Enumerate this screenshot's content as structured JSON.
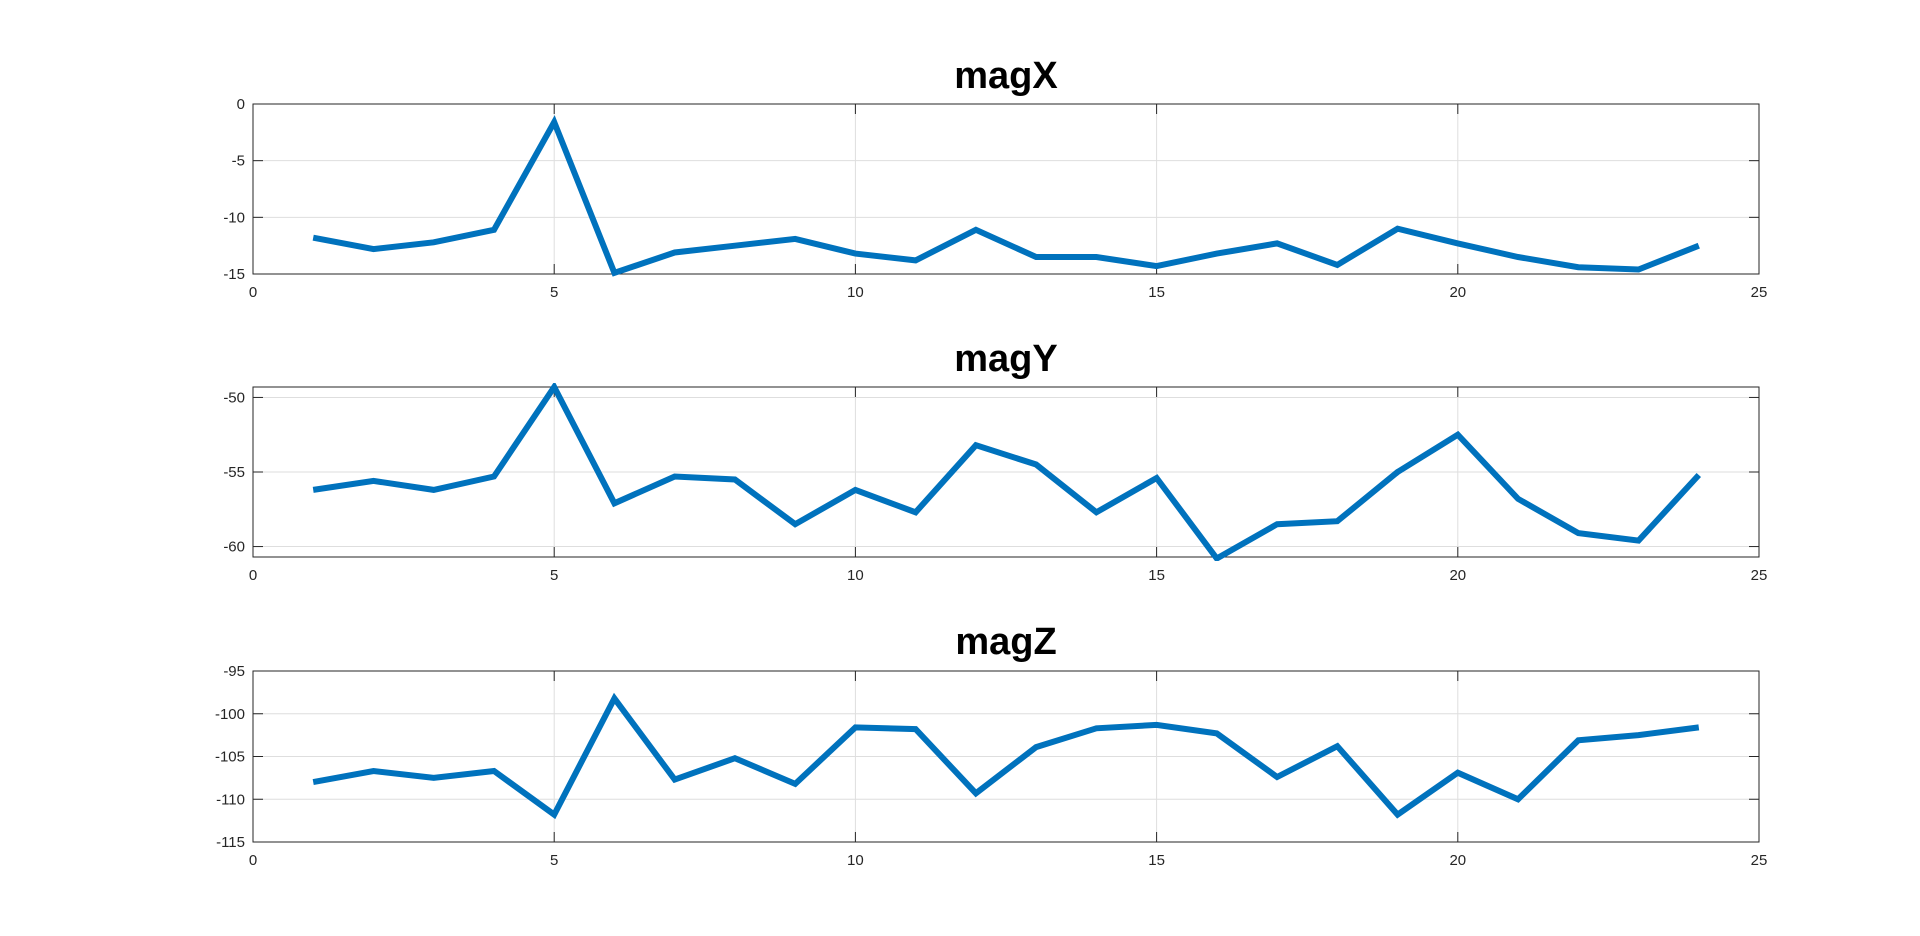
{
  "chart_data": [
    {
      "type": "line",
      "title": "magX",
      "xlabel": "",
      "ylabel": "",
      "xlim": [
        0,
        25
      ],
      "ylim": [
        -15,
        0
      ],
      "xticks": [
        "0",
        "5",
        "10",
        "15",
        "20",
        "25"
      ],
      "xtick_values": [
        0,
        5,
        10,
        15,
        20,
        25
      ],
      "yticks": [
        "0",
        "-5",
        "-10",
        "-15"
      ],
      "ytick_values": [
        0,
        -5,
        -10,
        -15
      ],
      "grid": true,
      "x": [
        1,
        2,
        3,
        4,
        5,
        6,
        7,
        8,
        9,
        10,
        11,
        12,
        13,
        14,
        15,
        16,
        17,
        18,
        19,
        20,
        21,
        22,
        23,
        24
      ],
      "series": [
        {
          "color": "#0072BD",
          "values": [
            -11.8,
            -12.8,
            -12.2,
            -11.1,
            -1.6,
            -14.9,
            -13.1,
            -12.5,
            -11.9,
            -13.2,
            -13.8,
            -11.1,
            -13.5,
            -13.5,
            -14.3,
            -13.2,
            -12.3,
            -14.2,
            -11.0,
            -12.3,
            -13.5,
            -14.4,
            -14.6,
            -12.5
          ]
        }
      ]
    },
    {
      "type": "line",
      "title": "magY",
      "xlabel": "",
      "ylabel": "",
      "xlim": [
        0,
        25
      ],
      "ylim": [
        -60.7,
        -49.3
      ],
      "xticks": [
        "0",
        "5",
        "10",
        "15",
        "20",
        "25"
      ],
      "xtick_values": [
        0,
        5,
        10,
        15,
        20,
        25
      ],
      "yticks": [
        "-50",
        "-55",
        "-60"
      ],
      "ytick_values": [
        -50,
        -55,
        -60
      ],
      "grid": true,
      "x": [
        1,
        2,
        3,
        4,
        5,
        6,
        7,
        8,
        9,
        10,
        11,
        12,
        13,
        14,
        15,
        16,
        17,
        18,
        19,
        20,
        21,
        22,
        23,
        24
      ],
      "series": [
        {
          "color": "#0072BD",
          "values": [
            -56.2,
            -55.6,
            -56.2,
            -55.3,
            -49.3,
            -57.1,
            -55.3,
            -55.5,
            -58.5,
            -56.2,
            -57.7,
            -53.2,
            -54.5,
            -57.7,
            -55.4,
            -60.8,
            -58.5,
            -58.3,
            -55.0,
            -52.5,
            -56.8,
            -59.1,
            -59.6,
            -55.2
          ]
        }
      ]
    },
    {
      "type": "line",
      "title": "magZ",
      "xlabel": "",
      "ylabel": "",
      "xlim": [
        0,
        25
      ],
      "ylim": [
        -115,
        -95
      ],
      "xticks": [
        "0",
        "5",
        "10",
        "15",
        "20",
        "25"
      ],
      "xtick_values": [
        0,
        5,
        10,
        15,
        20,
        25
      ],
      "yticks": [
        "-95",
        "-100",
        "-105",
        "-110",
        "-115"
      ],
      "ytick_values": [
        -95,
        -100,
        -105,
        -110,
        -115
      ],
      "grid": true,
      "x": [
        1,
        2,
        3,
        4,
        5,
        6,
        7,
        8,
        9,
        10,
        11,
        12,
        13,
        14,
        15,
        16,
        17,
        18,
        19,
        20,
        21,
        22,
        23,
        24
      ],
      "series": [
        {
          "color": "#0072BD",
          "values": [
            -108.0,
            -106.7,
            -107.5,
            -106.7,
            -111.8,
            -98.2,
            -107.7,
            -105.2,
            -108.2,
            -101.6,
            -101.8,
            -109.3,
            -103.9,
            -101.7,
            -101.3,
            -102.3,
            -107.4,
            -103.8,
            -111.8,
            -106.9,
            -110.0,
            -103.1,
            -102.5,
            -101.6
          ]
        }
      ]
    }
  ]
}
